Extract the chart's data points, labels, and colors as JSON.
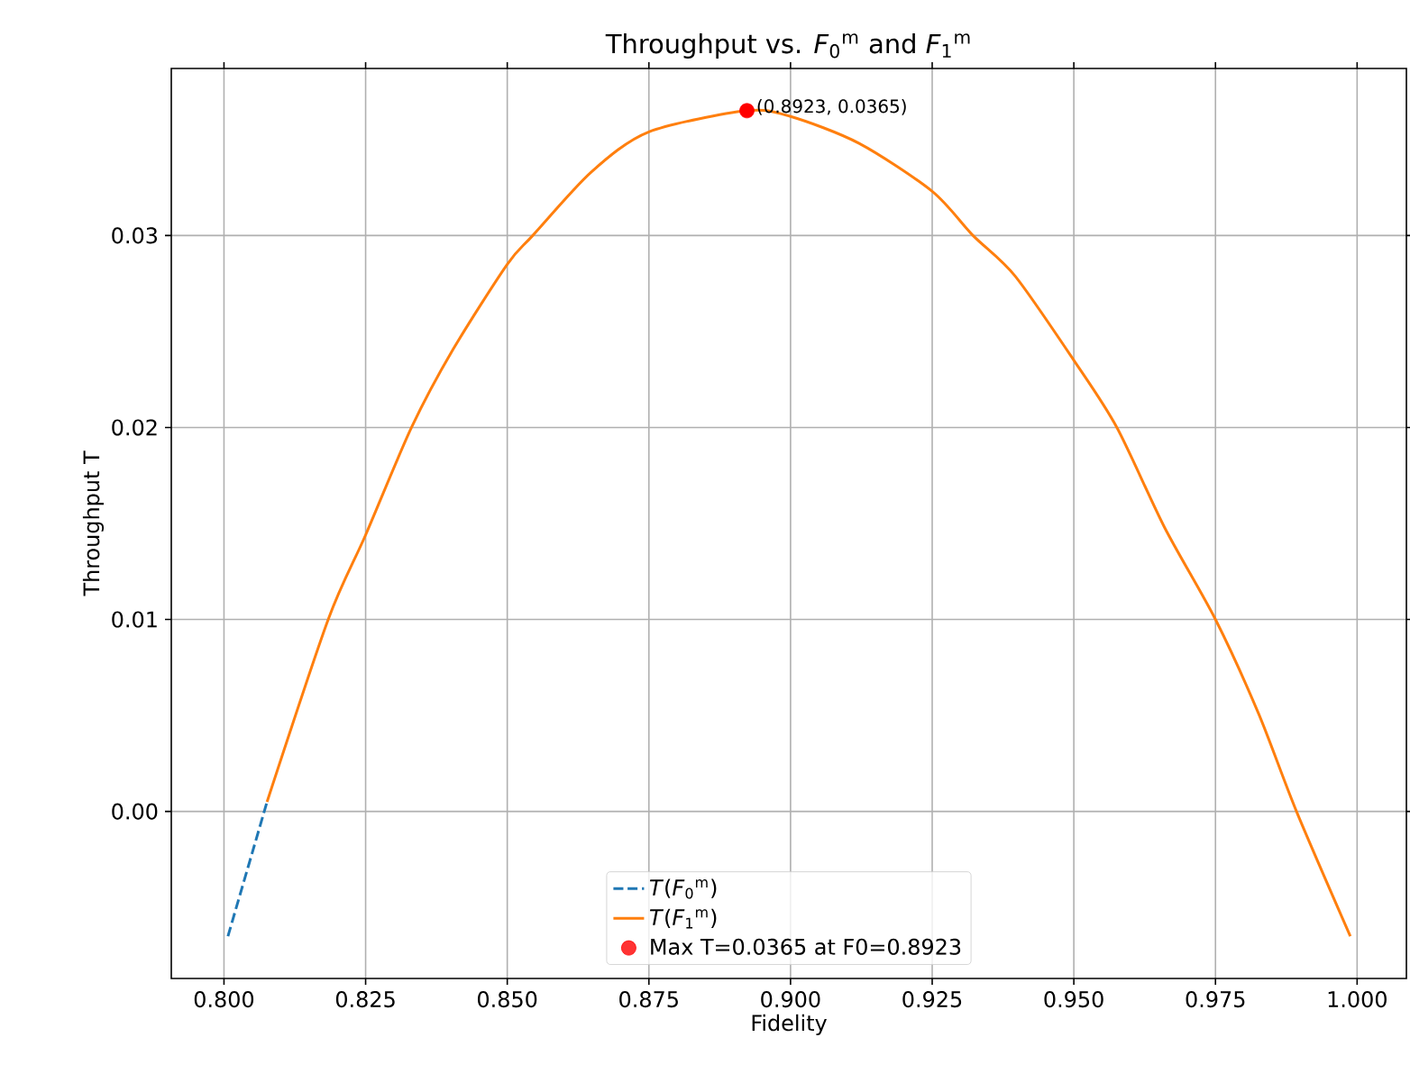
{
  "chart_data": {
    "type": "line",
    "title": "Throughput vs. *F*$_{0}$$^{m}$ and *F*$_{1}$$^{m}$",
    "xlabel": "Fidelity",
    "ylabel": "Throughput T",
    "xlim": [
      0.7907,
      1.0087
    ],
    "ylim": [
      -0.0087,
      0.0387
    ],
    "xticks": [
      {
        "value": 0.8,
        "label": "0.800"
      },
      {
        "value": 0.825,
        "label": "0.825"
      },
      {
        "value": 0.85,
        "label": "0.850"
      },
      {
        "value": 0.875,
        "label": "0.875"
      },
      {
        "value": 0.9,
        "label": "0.900"
      },
      {
        "value": 0.925,
        "label": "0.925"
      },
      {
        "value": 0.95,
        "label": "0.950"
      },
      {
        "value": 0.975,
        "label": "0.975"
      },
      {
        "value": 1.0,
        "label": "1.000"
      }
    ],
    "yticks": [
      {
        "value": 0,
        "label": "0.00"
      },
      {
        "value": 0.01,
        "label": "0.01"
      },
      {
        "value": 0.02,
        "label": "0.02"
      },
      {
        "value": 0.03,
        "label": "0.03"
      }
    ],
    "grid": true,
    "legend": "bottom",
    "series": [
      {
        "name": "*T*(*F*$_{0}$$^{m}$)",
        "color": "#1f77b4",
        "line_style": "dashed",
        "x": [
          0.8007,
          0.8076
        ],
        "values": [
          -0.0065,
          0.0005
        ]
      },
      {
        "name": "*T*(*F*$_{1}$$^{m}$)",
        "color": "#ff7f0e",
        "line_style": "solid",
        "x": [
          0.8076,
          0.8184,
          0.825,
          0.8331,
          0.8405,
          0.85,
          0.8545,
          0.8648,
          0.875,
          0.8923,
          0.9,
          0.9121,
          0.925,
          0.9322,
          0.9396,
          0.95,
          0.9576,
          0.966,
          0.975,
          0.9826,
          0.9893,
          0.9988
        ],
        "values": [
          0.0005,
          0.01,
          0.0144,
          0.02,
          0.0241,
          0.0285,
          0.03,
          0.0333,
          0.0354,
          0.0365,
          0.0362,
          0.0348,
          0.0323,
          0.03,
          0.0279,
          0.0235,
          0.02,
          0.0148,
          0.01,
          0.0051,
          0.0,
          -0.0065
        ]
      },
      {
        "name": "Max T=0.0365 at F0=0.8923",
        "type": "scatter",
        "marker": "circle",
        "color": "#ff0000",
        "x": [
          0.8923
        ],
        "values": [
          0.0365
        ]
      }
    ],
    "annotations": [
      {
        "text": "(0.8923, 0.0365)",
        "x": 0.8923,
        "y": 0.0365
      }
    ]
  }
}
